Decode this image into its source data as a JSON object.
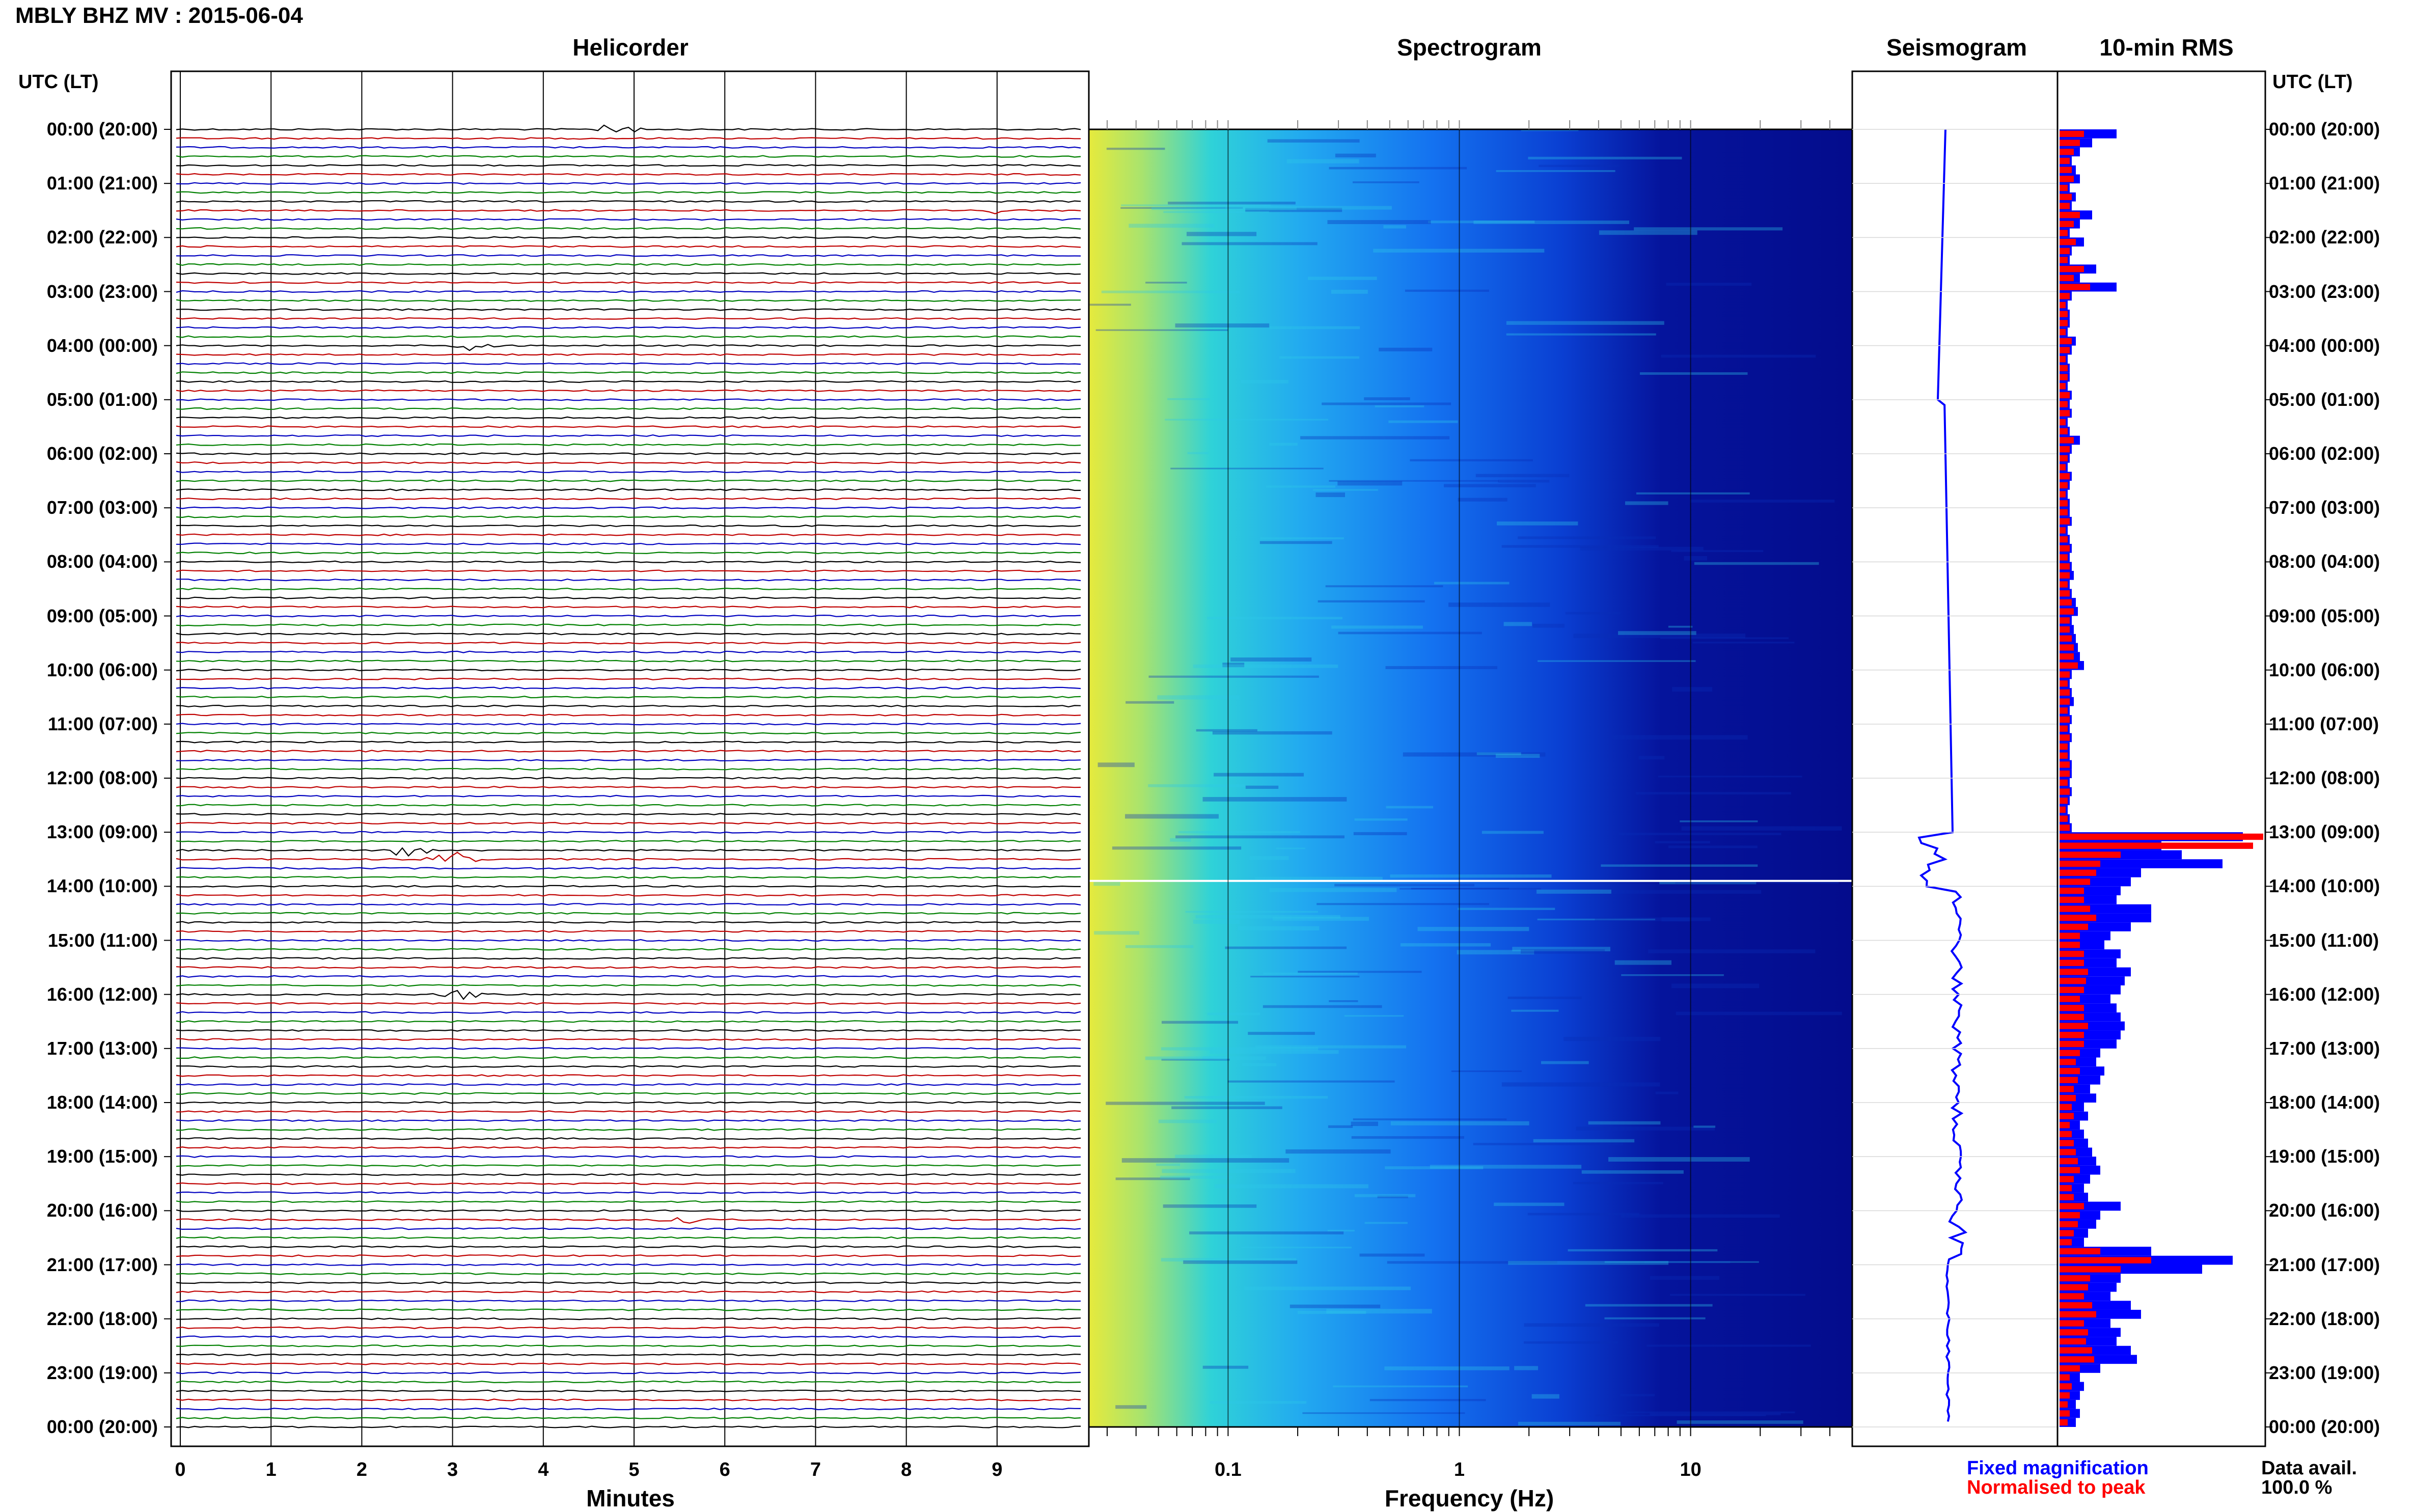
{
  "header": {
    "title": "MBLY BHZ MV : 2015-06-04"
  },
  "panels": {
    "helicorder": "Helicorder",
    "spectrogram": "Spectrogram",
    "seismogram": "Seismogram",
    "rms": "10-min RMS"
  },
  "axes": {
    "utc_left": "UTC (LT)",
    "utc_right": "UTC (LT)",
    "minutes_title": "Minutes",
    "frequency_title": "Frequency (Hz)",
    "minutes_ticks": [
      "0",
      "1",
      "2",
      "3",
      "4",
      "5",
      "6",
      "7",
      "8",
      "9"
    ],
    "frequency_ticks": [
      "0.1",
      "1",
      "10"
    ]
  },
  "time_labels": [
    "00:00 (20:00)",
    "01:00 (21:00)",
    "02:00 (22:00)",
    "03:00 (23:00)",
    "04:00 (00:00)",
    "05:00 (01:00)",
    "06:00 (02:00)",
    "07:00 (03:00)",
    "08:00 (04:00)",
    "09:00 (05:00)",
    "10:00 (06:00)",
    "11:00 (07:00)",
    "12:00 (08:00)",
    "13:00 (09:00)",
    "14:00 (10:00)",
    "15:00 (11:00)",
    "16:00 (12:00)",
    "17:00 (13:00)",
    "18:00 (14:00)",
    "19:00 (15:00)",
    "20:00 (16:00)",
    "21:00 (17:00)",
    "22:00 (18:00)",
    "23:00 (19:00)",
    "00:00 (20:00)"
  ],
  "legend": {
    "fixed": "Fixed magnification",
    "normalised": "Normalised to peak",
    "data_avail_label": "Data avail.",
    "data_avail_value": "100.0 %"
  },
  "colors": {
    "helicorder_traces": [
      "#000000",
      "#c00000",
      "#0000c0",
      "#008000"
    ],
    "fixed": "#0000ff",
    "normalised": "#ff0000",
    "spectrogram_low": "#00008b",
    "spectrogram_mid": "#00ffff",
    "spectrogram_high": "#ffff00"
  },
  "chart_data": [
    {
      "type": "line",
      "title": "Helicorder",
      "xlabel": "Minutes",
      "xlim": [
        0,
        10
      ],
      "rows_per_hour": 6,
      "hours": 24,
      "events": [
        {
          "row": 0,
          "minute": 4.8,
          "amplitude": 1.0
        },
        {
          "row": 9,
          "minute": 9.0,
          "amplitude": 0.5
        },
        {
          "row": 24,
          "minute": 3.2,
          "amplitude": 0.7
        },
        {
          "row": 40,
          "minute": 4.8,
          "amplitude": 0.4
        },
        {
          "row": 80,
          "minute": 2.5,
          "amplitude": 1.0
        },
        {
          "row": 81,
          "minute": 3.0,
          "amplitude": 1.0
        },
        {
          "row": 96,
          "minute": 3.1,
          "amplitude": 0.8
        },
        {
          "row": 121,
          "minute": 5.5,
          "amplitude": 0.6
        }
      ]
    },
    {
      "type": "heatmap",
      "title": "Spectrogram",
      "xlabel": "Frequency (Hz)",
      "xscale": "log",
      "xlim": [
        0.025,
        50
      ],
      "colormap": "jet"
    },
    {
      "type": "line",
      "title": "Seismogram",
      "hours": 24
    },
    {
      "type": "bar",
      "title": "10-min RMS",
      "orientation": "horizontal",
      "hours": 24,
      "series": [
        {
          "name": "Fixed magnification",
          "values": [
            0.28,
            0.16,
            0.1,
            0.06,
            0.08,
            0.1,
            0.05,
            0.08,
            0.06,
            0.16,
            0.1,
            0.05,
            0.12,
            0.06,
            0.05,
            0.18,
            0.1,
            0.28,
            0.06,
            0.04,
            0.05,
            0.05,
            0.04,
            0.08,
            0.06,
            0.04,
            0.05,
            0.05,
            0.04,
            0.06,
            0.05,
            0.06,
            0.04,
            0.05,
            0.1,
            0.06,
            0.05,
            0.04,
            0.06,
            0.05,
            0.04,
            0.05,
            0.05,
            0.06,
            0.04,
            0.05,
            0.06,
            0.05,
            0.06,
            0.07,
            0.05,
            0.06,
            0.08,
            0.09,
            0.06,
            0.07,
            0.08,
            0.09,
            0.1,
            0.12,
            0.06,
            0.05,
            0.06,
            0.07,
            0.05,
            0.06,
            0.05,
            0.06,
            0.05,
            0.05,
            0.06,
            0.06,
            0.05,
            0.06,
            0.05,
            0.04,
            0.05,
            0.06,
            0.9,
            0.5,
            0.6,
            0.8,
            0.4,
            0.35,
            0.3,
            0.28,
            0.45,
            0.45,
            0.35,
            0.25,
            0.22,
            0.3,
            0.28,
            0.35,
            0.32,
            0.3,
            0.25,
            0.28,
            0.3,
            0.32,
            0.3,
            0.28,
            0.2,
            0.18,
            0.22,
            0.2,
            0.15,
            0.18,
            0.12,
            0.14,
            0.1,
            0.12,
            0.14,
            0.16,
            0.18,
            0.2,
            0.15,
            0.12,
            0.14,
            0.3,
            0.2,
            0.18,
            0.14,
            0.12,
            0.45,
            0.85,
            0.7,
            0.3,
            0.28,
            0.25,
            0.35,
            0.4,
            0.25,
            0.3,
            0.28,
            0.35,
            0.38,
            0.2,
            0.1,
            0.12,
            0.1,
            0.08,
            0.1,
            0.08
          ]
        },
        {
          "name": "Normalised to peak",
          "values": [
            0.12,
            0.1,
            0.07,
            0.05,
            0.06,
            0.07,
            0.04,
            0.06,
            0.05,
            0.1,
            0.07,
            0.04,
            0.08,
            0.05,
            0.04,
            0.12,
            0.07,
            0.15,
            0.05,
            0.03,
            0.04,
            0.04,
            0.03,
            0.06,
            0.05,
            0.03,
            0.04,
            0.04,
            0.03,
            0.05,
            0.04,
            0.05,
            0.03,
            0.04,
            0.07,
            0.05,
            0.04,
            0.03,
            0.05,
            0.04,
            0.03,
            0.04,
            0.04,
            0.05,
            0.03,
            0.04,
            0.05,
            0.04,
            0.05,
            0.05,
            0.04,
            0.05,
            0.06,
            0.07,
            0.05,
            0.05,
            0.06,
            0.07,
            0.07,
            0.09,
            0.05,
            0.04,
            0.05,
            0.05,
            0.04,
            0.05,
            0.04,
            0.05,
            0.04,
            0.04,
            0.05,
            0.05,
            0.04,
            0.05,
            0.04,
            0.03,
            0.04,
            0.05,
            1.0,
            0.95,
            0.3,
            0.2,
            0.18,
            0.15,
            0.12,
            0.12,
            0.15,
            0.18,
            0.14,
            0.1,
            0.1,
            0.12,
            0.12,
            0.14,
            0.13,
            0.12,
            0.1,
            0.12,
            0.12,
            0.14,
            0.12,
            0.12,
            0.1,
            0.08,
            0.1,
            0.09,
            0.07,
            0.08,
            0.06,
            0.07,
            0.05,
            0.06,
            0.07,
            0.08,
            0.09,
            0.1,
            0.07,
            0.06,
            0.07,
            0.12,
            0.1,
            0.09,
            0.07,
            0.06,
            0.2,
            0.45,
            0.3,
            0.15,
            0.14,
            0.12,
            0.16,
            0.18,
            0.12,
            0.14,
            0.13,
            0.16,
            0.17,
            0.1,
            0.05,
            0.06,
            0.05,
            0.04,
            0.05,
            0.04
          ]
        }
      ]
    }
  ]
}
